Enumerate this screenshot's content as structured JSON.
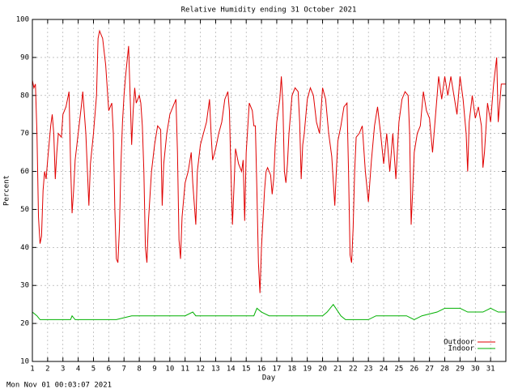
{
  "chart_data": {
    "type": "line",
    "title": "Relative Humidity ending 31 October 2021",
    "y_label": "Percent",
    "x_label": "Day",
    "footer": "Mon Nov 01 00:03:07 2021",
    "xlim": [
      1,
      32
    ],
    "ylim": [
      10,
      100
    ],
    "xticks": [
      1,
      2,
      3,
      4,
      5,
      6,
      7,
      8,
      9,
      10,
      11,
      12,
      13,
      14,
      15,
      16,
      17,
      18,
      19,
      20,
      21,
      22,
      23,
      24,
      25,
      26,
      27,
      28,
      29,
      30,
      31
    ],
    "yticks": [
      10,
      20,
      30,
      40,
      50,
      60,
      70,
      80,
      90,
      100
    ],
    "grid": true,
    "legend": "bottom-right",
    "series": [
      {
        "name": "Outdoor",
        "color": "#e00000",
        "x": [
          1.0,
          1.1,
          1.2,
          1.3,
          1.4,
          1.5,
          1.6,
          1.7,
          1.8,
          1.9,
          2.0,
          2.2,
          2.3,
          2.4,
          2.5,
          2.6,
          2.7,
          2.9,
          3.0,
          3.2,
          3.4,
          3.5,
          3.6,
          3.7,
          3.8,
          4.0,
          4.2,
          4.3,
          4.5,
          4.7,
          4.8,
          5.0,
          5.2,
          5.3,
          5.4,
          5.6,
          5.8,
          5.9,
          6.0,
          6.2,
          6.3,
          6.4,
          6.5,
          6.6,
          6.7,
          6.8,
          6.9,
          7.0,
          7.1,
          7.3,
          7.4,
          7.5,
          7.6,
          7.7,
          7.8,
          8.0,
          8.1,
          8.2,
          8.3,
          8.4,
          8.5,
          8.6,
          8.8,
          9.0,
          9.2,
          9.4,
          9.5,
          9.6,
          9.8,
          10.0,
          10.2,
          10.4,
          10.5,
          10.6,
          10.7,
          10.8,
          11.0,
          11.2,
          11.4,
          11.5,
          11.7,
          11.8,
          12.0,
          12.2,
          12.4,
          12.6,
          12.7,
          12.8,
          13.0,
          13.2,
          13.4,
          13.6,
          13.8,
          13.9,
          14.0,
          14.1,
          14.2,
          14.3,
          14.5,
          14.7,
          14.8,
          14.9,
          15.0,
          15.2,
          15.4,
          15.5,
          15.6,
          15.7,
          15.8,
          15.9,
          16.0,
          16.2,
          16.3,
          16.4,
          16.6,
          16.7,
          16.8,
          16.9,
          17.0,
          17.2,
          17.3,
          17.4,
          17.5,
          17.6,
          17.7,
          17.8,
          18.0,
          18.2,
          18.4,
          18.5,
          18.6,
          18.7,
          18.8,
          19.0,
          19.2,
          19.4,
          19.6,
          19.8,
          20.0,
          20.2,
          20.4,
          20.6,
          20.8,
          20.9,
          21.0,
          21.2,
          21.4,
          21.6,
          21.7,
          21.8,
          21.9,
          22.0,
          22.1,
          22.2,
          22.4,
          22.6,
          22.8,
          23.0,
          23.2,
          23.4,
          23.6,
          23.8,
          24.0,
          24.2,
          24.4,
          24.6,
          24.8,
          25.0,
          25.2,
          25.4,
          25.6,
          25.7,
          25.8,
          25.9,
          26.0,
          26.2,
          26.4,
          26.6,
          26.8,
          27.0,
          27.2,
          27.4,
          27.6,
          27.8,
          28.0,
          28.2,
          28.4,
          28.6,
          28.8,
          29.0,
          29.2,
          29.4,
          29.5,
          29.6,
          29.8,
          30.0,
          30.2,
          30.4,
          30.5,
          30.6,
          30.8,
          31.0,
          31.2,
          31.4,
          31.5,
          31.7,
          32.0
        ],
        "values": [
          84,
          82,
          83,
          70,
          48,
          41,
          43,
          55,
          60,
          58,
          63,
          72,
          75,
          70,
          58,
          65,
          70,
          69,
          75,
          77,
          81,
          62,
          49,
          55,
          63,
          70,
          77,
          81,
          70,
          51,
          62,
          70,
          80,
          95,
          97,
          95,
          88,
          82,
          76,
          78,
          70,
          50,
          37,
          36,
          45,
          62,
          73,
          80,
          85,
          93,
          80,
          67,
          76,
          82,
          78,
          80,
          78,
          72,
          60,
          40,
          36,
          47,
          60,
          67,
          72,
          71,
          51,
          62,
          70,
          75,
          77,
          79,
          65,
          42,
          37,
          48,
          57,
          60,
          65,
          57,
          46,
          60,
          67,
          70,
          73,
          79,
          70,
          63,
          66,
          70,
          73,
          79,
          81,
          76,
          60,
          46,
          56,
          66,
          62,
          60,
          63,
          47,
          65,
          78,
          76,
          72,
          72,
          55,
          36,
          28,
          40,
          55,
          60,
          61,
          59,
          54,
          58,
          67,
          73,
          79,
          85,
          78,
          60,
          57,
          62,
          70,
          80,
          82,
          81,
          73,
          58,
          67,
          70,
          79,
          82,
          80,
          73,
          70,
          82,
          79,
          70,
          64,
          51,
          60,
          68,
          72,
          77,
          78,
          60,
          38,
          36,
          45,
          60,
          69,
          70,
          72,
          60,
          52,
          63,
          72,
          77,
          70,
          62,
          70,
          60,
          70,
          58,
          73,
          79,
          81,
          80,
          70,
          46,
          55,
          65,
          70,
          72,
          81,
          76,
          74,
          65,
          75,
          85,
          79,
          85,
          80,
          85,
          80,
          75,
          85,
          79,
          70,
          60,
          73,
          80,
          74,
          77,
          72,
          61,
          65,
          78,
          73,
          83,
          90,
          73,
          83,
          83
        ]
      },
      {
        "name": "Indoor",
        "color": "#00b000",
        "x": [
          1.0,
          1.3,
          1.5,
          3.5,
          3.6,
          3.8,
          5.0,
          6.5,
          7.5,
          8.0,
          11.0,
          11.5,
          11.7,
          15.5,
          15.7,
          16.0,
          16.5,
          18.0,
          20.0,
          20.3,
          20.7,
          21.2,
          21.5,
          23.0,
          23.5,
          25.5,
          26.0,
          26.5,
          27.5,
          28.0,
          29.0,
          29.5,
          30.5,
          31.0,
          31.5,
          32.0
        ],
        "values": [
          23,
          22,
          21,
          21,
          22,
          21,
          21,
          21,
          22,
          22,
          22,
          23,
          22,
          22,
          24,
          23,
          22,
          22,
          22,
          23,
          25,
          22,
          21,
          21,
          22,
          22,
          21,
          22,
          23,
          24,
          24,
          23,
          23,
          24,
          23,
          23
        ]
      }
    ]
  }
}
